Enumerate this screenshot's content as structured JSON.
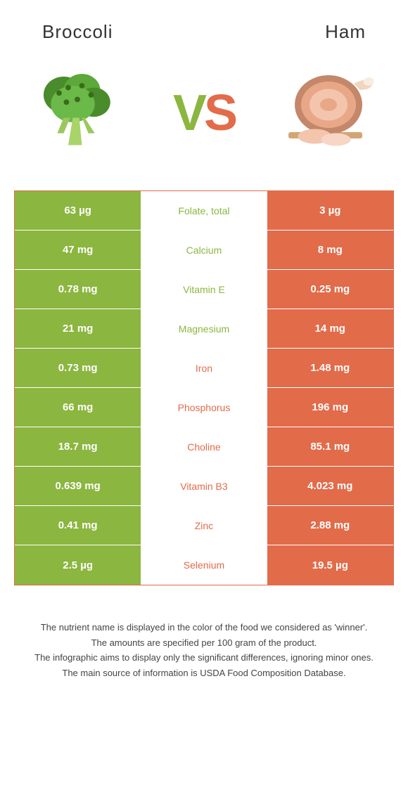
{
  "left_food": "Broccoli",
  "right_food": "Ham",
  "colors": {
    "green": "#8bb63f",
    "orange": "#e26b4a",
    "text": "#333333",
    "white": "#ffffff"
  },
  "rows": [
    {
      "nutrient": "Folate, total",
      "left": "63 µg",
      "right": "3 µg",
      "winner": "left"
    },
    {
      "nutrient": "Calcium",
      "left": "47 mg",
      "right": "8 mg",
      "winner": "left"
    },
    {
      "nutrient": "Vitamin E",
      "left": "0.78 mg",
      "right": "0.25 mg",
      "winner": "left"
    },
    {
      "nutrient": "Magnesium",
      "left": "21 mg",
      "right": "14 mg",
      "winner": "left"
    },
    {
      "nutrient": "Iron",
      "left": "0.73 mg",
      "right": "1.48 mg",
      "winner": "right"
    },
    {
      "nutrient": "Phosphorus",
      "left": "66 mg",
      "right": "196 mg",
      "winner": "right"
    },
    {
      "nutrient": "Choline",
      "left": "18.7 mg",
      "right": "85.1 mg",
      "winner": "right"
    },
    {
      "nutrient": "Vitamin B3",
      "left": "0.639 mg",
      "right": "4.023 mg",
      "winner": "right"
    },
    {
      "nutrient": "Zinc",
      "left": "0.41 mg",
      "right": "2.88 mg",
      "winner": "right"
    },
    {
      "nutrient": "Selenium",
      "left": "2.5 µg",
      "right": "19.5 µg",
      "winner": "right"
    }
  ],
  "footer": [
    "The nutrient name is displayed in the color of the food we considered as 'winner'.",
    "The amounts are specified per 100 gram of the product.",
    "The infographic aims to display only the significant differences, ignoring minor ones.",
    "The main source of information is USDA Food Composition Database."
  ]
}
